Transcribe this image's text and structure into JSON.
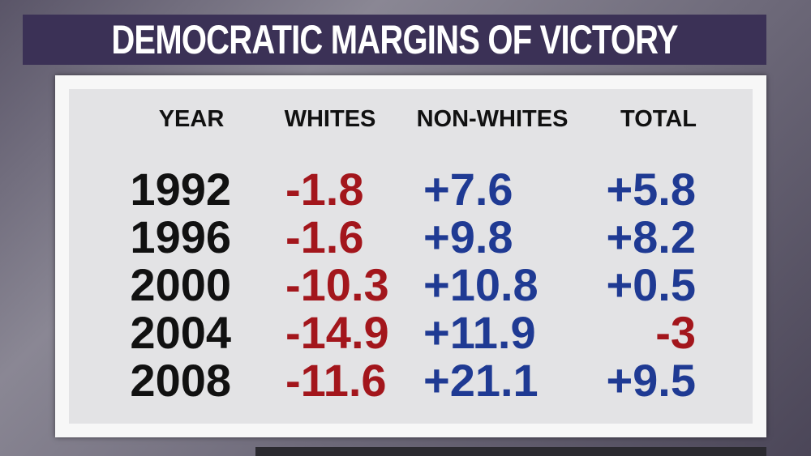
{
  "title": "DEMOCRATIC MARGINS OF VICTORY",
  "table": {
    "header": [
      "YEAR",
      "WHITES",
      "NON-WHITES",
      "TOTAL"
    ],
    "rows": [
      [
        "1992",
        "-1.8",
        "+7.6",
        "+5.8"
      ],
      [
        "1996",
        "-1.6",
        "+9.8",
        "+8.2"
      ],
      [
        "2000",
        "-10.3",
        "+10.8",
        "+0.5"
      ],
      [
        "2004",
        "-14.9",
        "+11.9",
        "-3"
      ],
      [
        "2008",
        "-11.6",
        "+21.1",
        "+9.5"
      ]
    ]
  },
  "colors": {
    "negative": "#a3161c",
    "positive": "#1f3a93",
    "year": "#111111"
  }
}
